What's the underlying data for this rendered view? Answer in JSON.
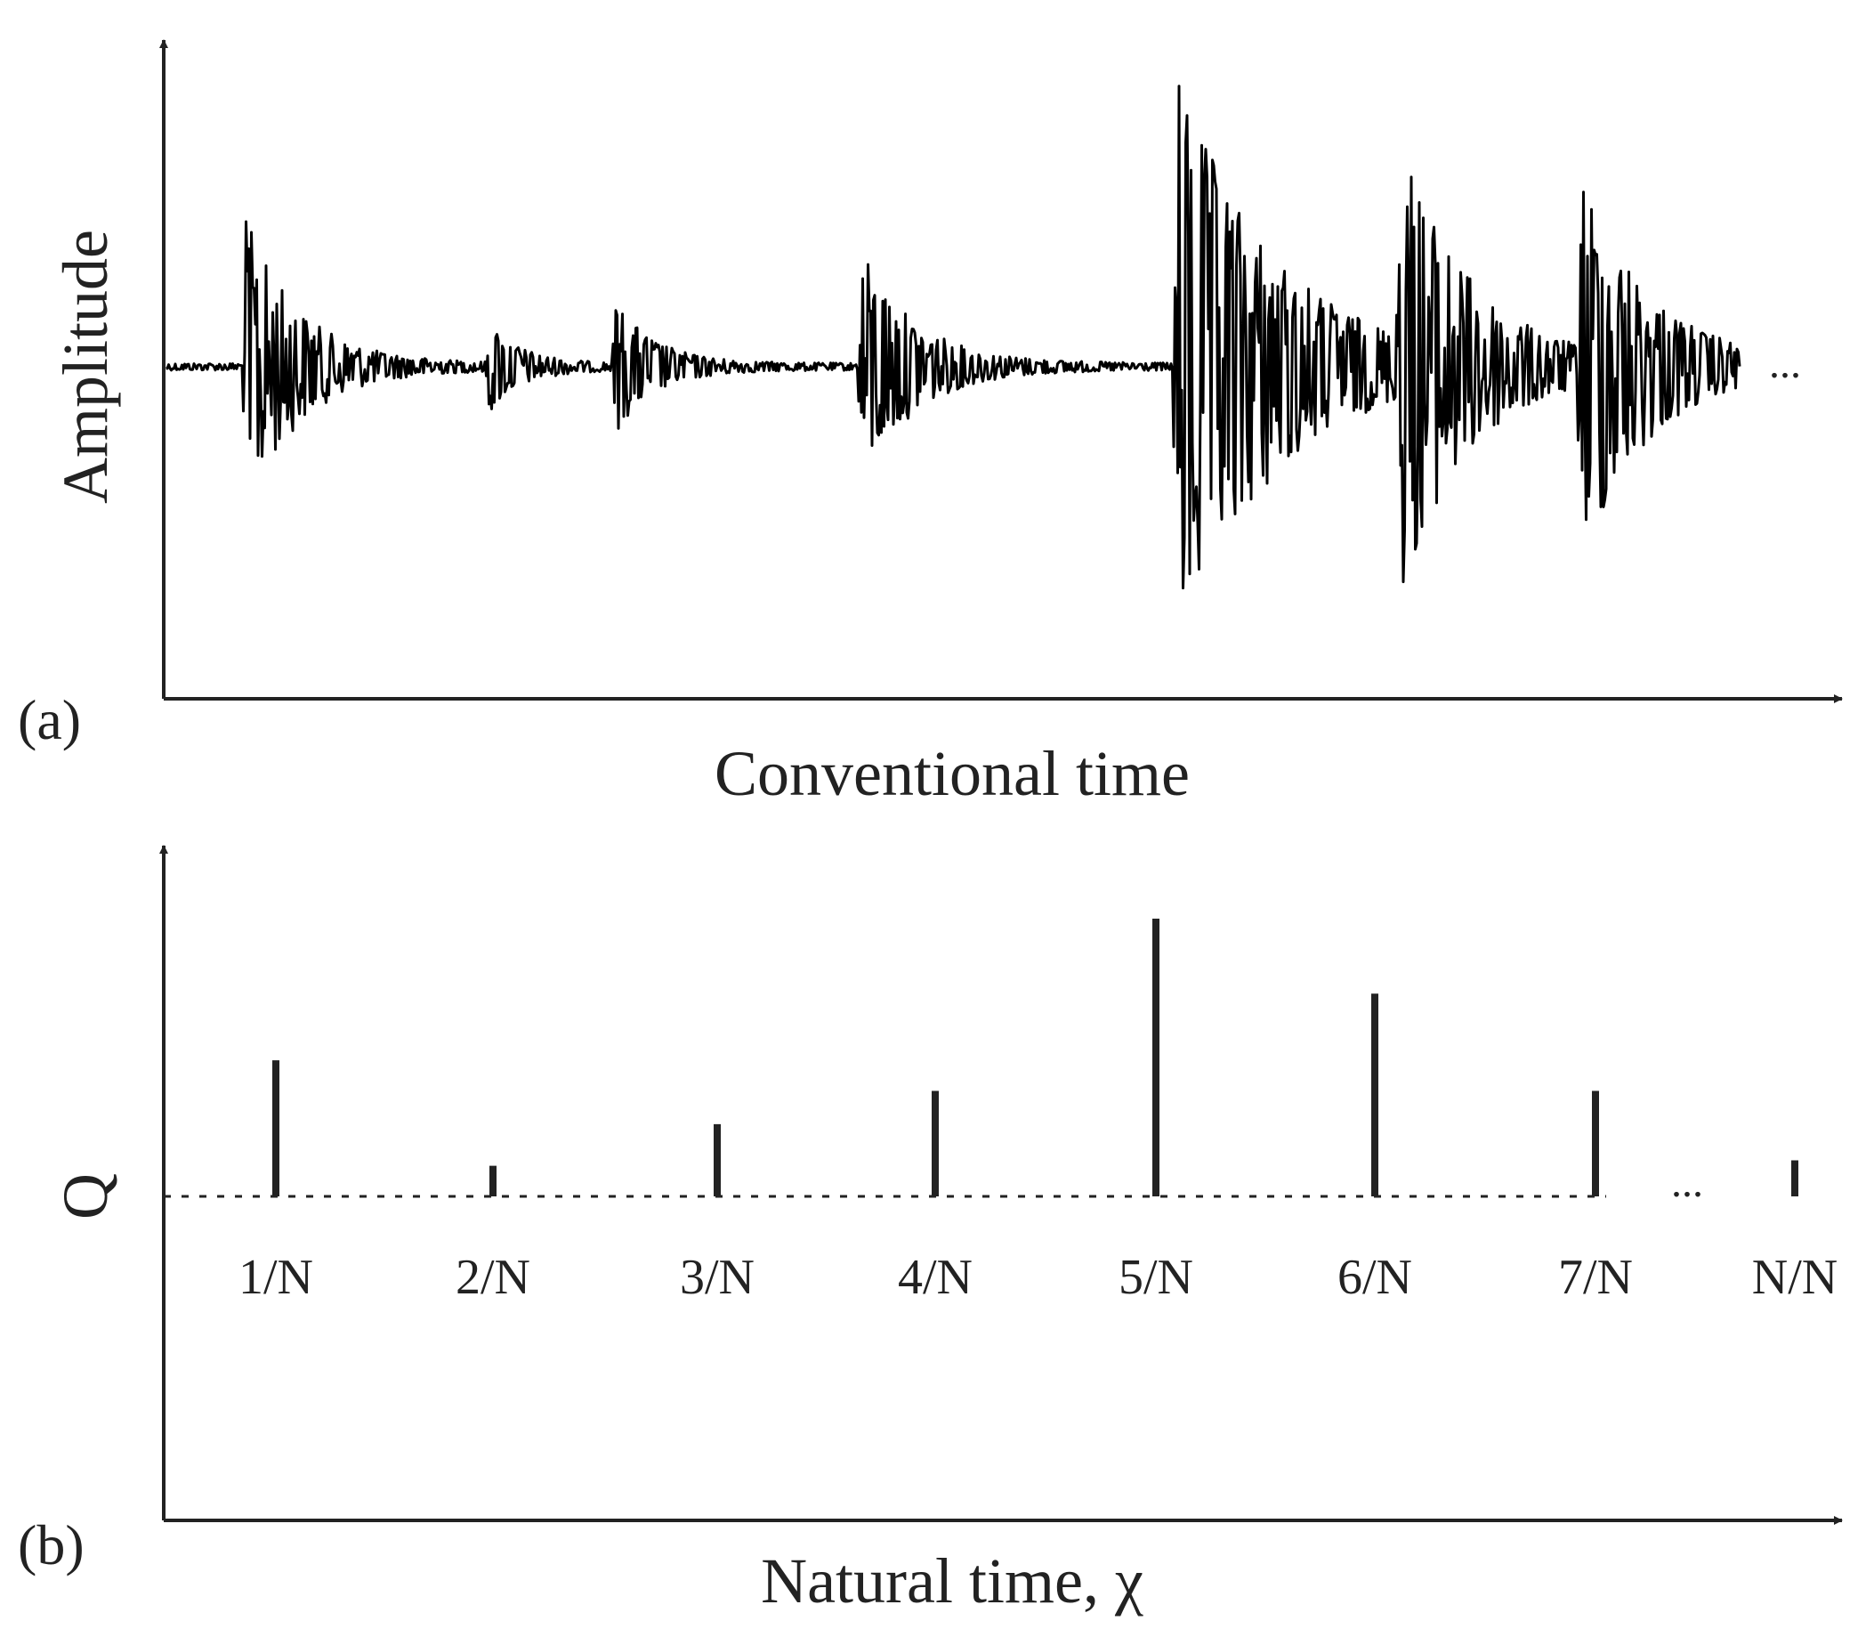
{
  "panel_a": {
    "label": "(a)",
    "ylabel": "Amplitude",
    "xlabel": "Conventional time",
    "continuation": "...",
    "events": [
      {
        "id": 1,
        "relative_peak": 0.5
      },
      {
        "id": 2,
        "relative_peak": 0.15
      },
      {
        "id": 3,
        "relative_peak": 0.22
      },
      {
        "id": 4,
        "relative_peak": 0.4
      },
      {
        "id": 5,
        "relative_peak": 1.0
      },
      {
        "id": 6,
        "relative_peak": 0.7
      },
      {
        "id": 7,
        "relative_peak": 0.62
      }
    ]
  },
  "panel_b": {
    "label": "(b)",
    "ylabel": "Q",
    "xlabel": "Natural time, χ",
    "ellipsis": "...",
    "stems": [
      {
        "tick": "1/N",
        "q": 0.49
      },
      {
        "tick": "2/N",
        "q": 0.11
      },
      {
        "tick": "3/N",
        "q": 0.26
      },
      {
        "tick": "4/N",
        "q": 0.38
      },
      {
        "tick": "5/N",
        "q": 1.0
      },
      {
        "tick": "6/N",
        "q": 0.73
      },
      {
        "tick": "7/N",
        "q": 0.38
      },
      {
        "tick": "N/N",
        "q": 0.13
      }
    ]
  },
  "colors": {
    "ink": "#000000",
    "text": "#222222",
    "background": "#ffffff"
  }
}
